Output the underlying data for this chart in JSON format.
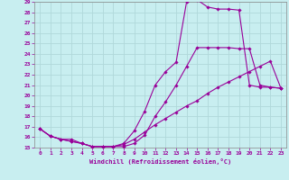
{
  "xlabel": "Windchill (Refroidissement éolien,°C)",
  "bg_color": "#c8eef0",
  "line_color": "#990099",
  "grid_color": "#b0d8da",
  "xlim": [
    -0.5,
    23.5
  ],
  "ylim": [
    15,
    29
  ],
  "yticks": [
    15,
    16,
    17,
    18,
    19,
    20,
    21,
    22,
    23,
    24,
    25,
    26,
    27,
    28,
    29
  ],
  "xticks": [
    0,
    1,
    2,
    3,
    4,
    5,
    6,
    7,
    8,
    9,
    10,
    11,
    12,
    13,
    14,
    15,
    16,
    17,
    18,
    19,
    20,
    21,
    22,
    23
  ],
  "line1_x": [
    0,
    1,
    2,
    3,
    4,
    5,
    6,
    7,
    8,
    9,
    10,
    11,
    12,
    13,
    14,
    15,
    16,
    17,
    18,
    19,
    20,
    21,
    22,
    23
  ],
  "line1_y": [
    16.8,
    16.1,
    15.8,
    15.8,
    15.4,
    15.1,
    15.1,
    15.1,
    15.4,
    16.6,
    18.5,
    21.0,
    22.3,
    23.2,
    29.0,
    29.2,
    28.5,
    28.3,
    28.3,
    28.2,
    21.0,
    20.8,
    20.8,
    20.7
  ],
  "line2_x": [
    0,
    1,
    2,
    3,
    4,
    5,
    6,
    7,
    8,
    9,
    10,
    11,
    12,
    13,
    14,
    15,
    16,
    17,
    18,
    19,
    20,
    21,
    22,
    23
  ],
  "line2_y": [
    16.8,
    16.1,
    15.8,
    15.6,
    15.4,
    15.1,
    15.1,
    15.1,
    15.1,
    15.4,
    16.2,
    18.0,
    19.4,
    21.0,
    22.8,
    24.6,
    24.6,
    24.6,
    24.6,
    24.5,
    24.5,
    21.0,
    20.8,
    20.7
  ],
  "line3_x": [
    0,
    1,
    2,
    3,
    4,
    5,
    6,
    7,
    8,
    9,
    10,
    11,
    12,
    13,
    14,
    15,
    16,
    17,
    18,
    19,
    20,
    21,
    22,
    23
  ],
  "line3_y": [
    16.8,
    16.1,
    15.8,
    15.6,
    15.4,
    15.1,
    15.1,
    15.1,
    15.3,
    15.8,
    16.5,
    17.2,
    17.8,
    18.4,
    19.0,
    19.5,
    20.2,
    20.8,
    21.3,
    21.8,
    22.3,
    22.8,
    23.3,
    20.7
  ]
}
